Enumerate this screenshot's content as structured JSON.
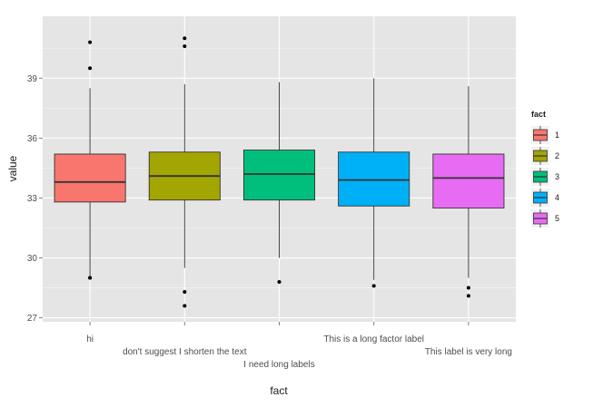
{
  "chart_data": {
    "type": "box",
    "xlabel": "fact",
    "ylabel": "value",
    "ylim": [
      26.8,
      42.1
    ],
    "yticks": [
      27,
      30,
      33,
      36,
      39
    ],
    "grid": true,
    "legend": {
      "title": "fact",
      "position": "right",
      "entries": [
        "1",
        "2",
        "3",
        "4",
        "5"
      ]
    },
    "categories": [
      "hi",
      "don't suggest I shorten the text",
      "I need long labels",
      "This is a long factor label",
      "This label is very long"
    ],
    "boxes": [
      {
        "category": "hi",
        "fill": "#F8766D",
        "whisker_low": 29.1,
        "q1": 32.8,
        "median": 33.8,
        "q3": 35.2,
        "whisker_high": 38.5,
        "outliers": [
          40.8,
          39.5,
          29.0,
          29.0
        ]
      },
      {
        "category": "don't suggest I shorten the text",
        "fill": "#A3A500",
        "whisker_low": 29.5,
        "q1": 32.9,
        "median": 34.1,
        "q3": 35.3,
        "whisker_high": 38.7,
        "outliers": [
          41.0,
          40.6,
          28.3,
          27.6
        ]
      },
      {
        "category": "I need long labels",
        "fill": "#00BF7D",
        "whisker_low": 30.0,
        "q1": 32.9,
        "median": 34.2,
        "q3": 35.4,
        "whisker_high": 38.8,
        "outliers": [
          28.8
        ]
      },
      {
        "category": "This is a long factor label",
        "fill": "#00B0F6",
        "whisker_low": 28.9,
        "q1": 32.6,
        "median": 33.9,
        "q3": 35.3,
        "whisker_high": 39.0,
        "outliers": [
          28.6
        ]
      },
      {
        "category": "This label is very long",
        "fill": "#E76BF3",
        "whisker_low": 29.0,
        "q1": 32.5,
        "median": 34.0,
        "q3": 35.2,
        "whisker_high": 38.6,
        "outliers": [
          28.5,
          28.1
        ]
      }
    ],
    "colors": {
      "panel": "#E5E5E5",
      "grid": "#FFFFFF",
      "text": "#4D4D4D"
    }
  }
}
